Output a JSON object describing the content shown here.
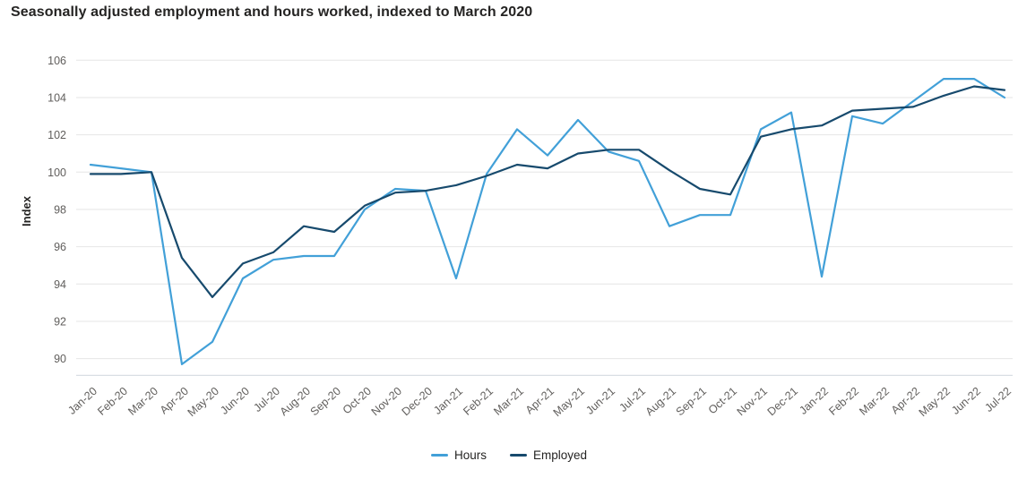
{
  "header": {
    "title": "Seasonally adjusted employment and hours worked, indexed to March 2020"
  },
  "colors": {
    "hours": "#42A0D8",
    "employed": "#174A6D",
    "gridline": "#E6E6E6",
    "axis_line": "#D9DEE4",
    "tick_text": "#605E5C",
    "title_text": "#252423"
  },
  "legend": {
    "items": [
      {
        "label": "Hours"
      },
      {
        "label": "Employed"
      }
    ]
  },
  "chart_data": {
    "type": "line",
    "title": "Seasonally adjusted employment and hours worked, indexed to March 2020",
    "xlabel": "",
    "ylabel": "Index",
    "grid": "horizontal-only",
    "legend_position": "bottom-center",
    "ylim": [
      89.1,
      106.4
    ],
    "yticks": [
      90,
      92,
      94,
      96,
      98,
      100,
      102,
      104,
      106
    ],
    "x": [
      "Jan-20",
      "Feb-20",
      "Mar-20",
      "Apr-20",
      "May-20",
      "Jun-20",
      "Jul-20",
      "Aug-20",
      "Sep-20",
      "Oct-20",
      "Nov-20",
      "Dec-20",
      "Jan-21",
      "Feb-21",
      "Mar-21",
      "Apr-21",
      "May-21",
      "Jun-21",
      "Jul-21",
      "Aug-21",
      "Sep-21",
      "Oct-21",
      "Nov-21",
      "Dec-21",
      "Jan-22",
      "Feb-22",
      "Mar-22",
      "Apr-22",
      "May-22",
      "Jun-22",
      "Jul-22"
    ],
    "series": [
      {
        "name": "Hours",
        "color": "#42A0D8",
        "values": [
          100.4,
          100.2,
          100.0,
          89.7,
          90.9,
          94.3,
          95.3,
          95.5,
          95.5,
          98.0,
          99.1,
          99.0,
          94.3,
          99.9,
          102.3,
          100.9,
          102.8,
          101.1,
          100.6,
          97.1,
          97.7,
          97.7,
          102.3,
          103.2,
          94.4,
          103.0,
          102.6,
          103.8,
          105.0,
          105.0,
          104.0
        ]
      },
      {
        "name": "Employed",
        "color": "#174A6D",
        "values": [
          99.9,
          99.9,
          100.0,
          95.4,
          93.3,
          95.1,
          95.7,
          97.1,
          96.8,
          98.2,
          98.9,
          99.0,
          99.3,
          99.8,
          100.4,
          100.2,
          101.0,
          101.2,
          101.2,
          100.1,
          99.1,
          98.8,
          101.9,
          102.3,
          102.5,
          103.3,
          103.4,
          103.5,
          104.1,
          104.6,
          104.4
        ]
      }
    ]
  }
}
